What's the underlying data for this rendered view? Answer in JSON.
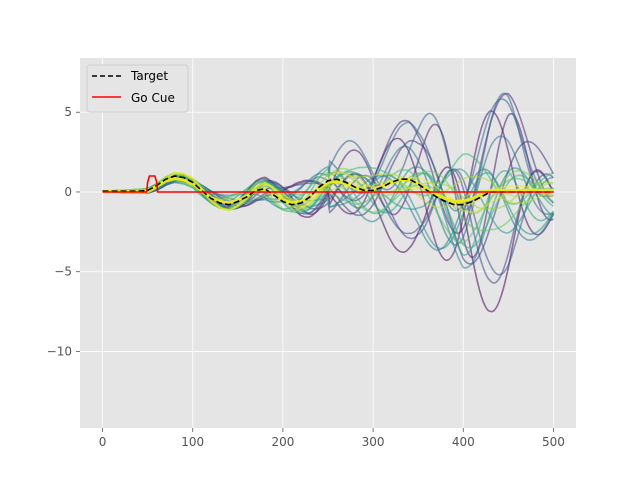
{
  "chart_data": {
    "type": "line",
    "title": "",
    "xlabel": "",
    "ylabel": "",
    "xlim": [
      -25,
      525
    ],
    "ylim": [
      -14.8,
      8.4
    ],
    "xticks": [
      0,
      100,
      200,
      300,
      400,
      500
    ],
    "yticks": [
      5,
      0,
      -5,
      -10
    ],
    "ytick_labels": [
      "5",
      "0",
      "−5",
      "−10"
    ],
    "grid": true,
    "style": "ggplot",
    "legend": {
      "placement": "top-left",
      "entries": [
        {
          "label": "Target",
          "color": "#000000",
          "dash": "dashed"
        },
        {
          "label": "Go Cue",
          "color": "#ff0000",
          "dash": "solid"
        }
      ]
    },
    "series": [
      {
        "name": "Target",
        "color": "#000000",
        "dash": "dashed",
        "x": [
          0,
          20,
          40,
          50,
          60,
          70,
          80,
          90,
          100,
          110,
          120,
          130,
          140,
          150,
          160,
          170,
          180,
          190,
          200,
          210,
          220,
          230,
          240,
          250,
          260,
          270,
          280,
          290,
          300,
          310,
          320,
          330,
          340,
          350,
          360,
          370,
          380,
          390,
          400,
          410,
          420,
          430,
          440,
          450,
          460,
          470,
          480,
          490,
          500
        ],
        "values": [
          0.05,
          0.05,
          0.05,
          0.1,
          0.4,
          0.8,
          1.0,
          0.9,
          0.6,
          0.1,
          -0.4,
          -0.7,
          -0.8,
          -0.6,
          -0.3,
          0.1,
          0.2,
          -0.2,
          -0.6,
          -0.8,
          -0.7,
          -0.3,
          0.3,
          0.7,
          0.8,
          0.6,
          0.3,
          0.1,
          0.1,
          0.3,
          0.6,
          0.8,
          0.8,
          0.5,
          0.1,
          -0.3,
          -0.6,
          -0.8,
          -0.8,
          -0.6,
          -0.3,
          0.0,
          0.0,
          0.0,
          0.0,
          0.0,
          0.0,
          0.0,
          0.0
        ]
      },
      {
        "name": "Go Cue",
        "color": "#ff0000",
        "dash": "solid",
        "x": [
          0,
          49,
          50,
          52,
          58,
          60,
          61,
          500
        ],
        "values": [
          0,
          0,
          0.6,
          1.0,
          1.0,
          0.6,
          0,
          0
        ]
      }
    ],
    "trajectories": {
      "description_colormap": "viridis",
      "count": 25,
      "color_start": "#440154",
      "color_end": "#fde725",
      "alpha": 0.55,
      "x_start": 0,
      "x_end": 500,
      "amplitude_envelope": {
        "x": [
          0,
          100,
          200,
          300,
          350,
          400,
          450,
          500
        ],
        "early": [
          0,
          0.5,
          1.5,
          4.0,
          5.0,
          9.0,
          7.5,
          4.0
        ],
        "late": [
          0,
          0.5,
          0.7,
          0.5,
          0.6,
          0.6,
          0.4,
          0.3
        ]
      },
      "notes_visible": false
    },
    "ego_trajectory": {
      "color": "#e8e81a",
      "width": 3
    }
  }
}
